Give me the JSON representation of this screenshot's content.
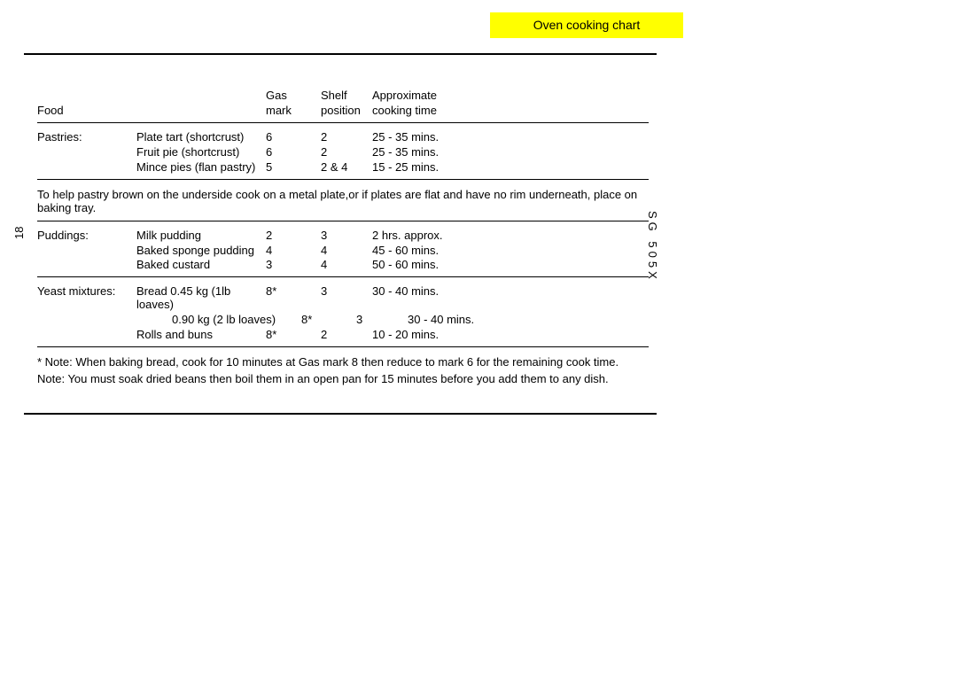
{
  "banner": {
    "title": "Oven cooking chart",
    "bg": "#ffff00"
  },
  "page_number": "18",
  "model_code": "SG 505X",
  "headers": {
    "food": "Food",
    "gas1": "Gas",
    "gas2": "mark",
    "shelf1": "Shelf",
    "shelf2": "position",
    "time1": "Approximate",
    "time2": "cooking time"
  },
  "sections": [
    {
      "category": "Pastries:",
      "rows": [
        {
          "desc": "Plate tart (shortcrust)",
          "gas": "6",
          "shelf": "2",
          "time": "25 - 35 mins."
        },
        {
          "desc": "Fruit pie (shortcrust)",
          "gas": "6",
          "shelf": "2",
          "time": "25 - 35 mins."
        },
        {
          "desc": "Mince pies (flan pastry)",
          "gas": "5",
          "shelf": "2 & 4",
          "time": "15 - 25 mins."
        }
      ],
      "footnote": "To help pastry brown on the underside cook on a metal plate,or if plates are flat and have no rim underneath, place on baking tray."
    },
    {
      "category": "Puddings:",
      "rows": [
        {
          "desc": "Milk pudding",
          "gas": "2",
          "shelf": "3",
          "time": "2 hrs. approx."
        },
        {
          "desc": "Baked sponge pudding",
          "gas": "4",
          "shelf": "4",
          "time": "45 - 60 mins."
        },
        {
          "desc": "Baked custard",
          "gas": "3",
          "shelf": "4",
          "time": "50 - 60 mins."
        }
      ]
    },
    {
      "category": "Yeast mixtures:",
      "rows": [
        {
          "desc": "Bread  0.45 kg (1lb loaves)",
          "gas": "8*",
          "shelf": "3",
          "time": "30 - 40 mins."
        },
        {
          "desc": "0.90 kg (2 lb loaves)",
          "gas": "8*",
          "shelf": "3",
          "time": "30 - 40 mins.",
          "indent": true
        },
        {
          "desc": "Rolls and buns",
          "gas": "8*",
          "shelf": "2",
          "time": "10 - 20 mins."
        }
      ]
    }
  ],
  "end_notes": [
    "* Note: When baking bread, cook for 10 minutes at Gas mark 8 then reduce to mark 6 for the remaining cook time.",
    "Note: You must soak dried beans then boil them in an open pan for 15 minutes before you add them to any dish."
  ]
}
